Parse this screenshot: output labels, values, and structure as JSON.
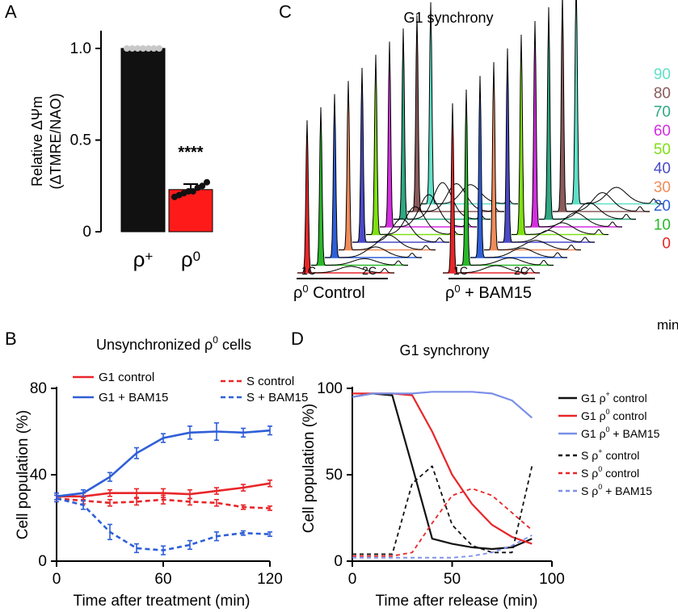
{
  "figure": {
    "panel_letters": [
      "A",
      "B",
      "C",
      "D"
    ]
  },
  "chart_data": [
    {
      "panel": "A",
      "type": "bar",
      "ylabel_line1": "Relative ΔΨm",
      "ylabel_line2": "(ΔTMRE/NAO)",
      "ylim": [
        0,
        1.1
      ],
      "yticks": [
        0,
        0.5,
        1.0
      ],
      "ytick_labels": [
        "0",
        "0.5",
        "1.0"
      ],
      "categories": [
        {
          "base": "ρ",
          "sup": "+"
        },
        {
          "base": "ρ",
          "sup": "0"
        }
      ],
      "values": [
        1.0,
        0.23
      ],
      "errors": [
        0.0,
        0.03
      ],
      "colors": [
        "#111111",
        "#ff1a1a"
      ],
      "points": [
        [
          1.0,
          1.0,
          1.0,
          1.0,
          1.0,
          1.0,
          1.0
        ],
        [
          0.19,
          0.2,
          0.21,
          0.22,
          0.22,
          0.24,
          0.25,
          0.27
        ]
      ],
      "annotation": "****"
    },
    {
      "panel": "B",
      "type": "line",
      "title": "Unsynchronized ρ",
      "title_sup": "0",
      "title_suffix": " cells",
      "xlabel": "Time after treatment (min)",
      "ylabel": "Cell population (%)",
      "xlim": [
        0,
        120
      ],
      "ylim": [
        0,
        80
      ],
      "xticks": [
        0,
        40,
        60,
        120
      ],
      "xtick_labels": [
        "0",
        "60",
        "120"
      ],
      "xtick_label_values": [
        0,
        60,
        120
      ],
      "yticks": [
        0,
        40,
        80
      ],
      "ytick_labels": [
        "0",
        "40",
        "80"
      ],
      "x": [
        0,
        15,
        30,
        45,
        60,
        75,
        90,
        105,
        120
      ],
      "series": [
        {
          "name": "G1 control",
          "color": "#e8262a",
          "dashed": false,
          "values": [
            30,
            30,
            31.5,
            31.5,
            31.5,
            31,
            32.5,
            34,
            36
          ],
          "errors": [
            1.5,
            1.5,
            1.5,
            2,
            2,
            2,
            1.5,
            1.5,
            1.5
          ]
        },
        {
          "name": "G1 + BAM15",
          "color": "#2f5fd8",
          "dashed": false,
          "values": [
            30,
            31.5,
            39,
            50,
            57,
            59.5,
            60,
            59.5,
            60.5
          ],
          "errors": [
            1.5,
            1.5,
            2,
            2.5,
            2,
            3,
            4,
            2,
            2
          ]
        },
        {
          "name": "S control",
          "color": "#e8262a",
          "dashed": true,
          "values": [
            29,
            28,
            27,
            27.5,
            28.5,
            27.5,
            27,
            25,
            24.5
          ],
          "errors": [
            1.5,
            1.5,
            1.5,
            1.5,
            2,
            1.5,
            1.5,
            1,
            1
          ]
        },
        {
          "name": "S + BAM15",
          "color": "#2f5fd8",
          "dashed": true,
          "values": [
            29,
            26,
            13.5,
            6,
            5,
            7.5,
            11.5,
            13,
            12.5
          ],
          "errors": [
            1.5,
            2,
            3.5,
            2,
            2,
            2,
            2,
            1,
            1
          ]
        }
      ]
    },
    {
      "panel": "C",
      "type": "histogram-stack",
      "title": "G1 synchrony",
      "timepoints_label_unit": "min",
      "timepoints": [
        {
          "label": "90",
          "color": "#5fe0c8"
        },
        {
          "label": "80",
          "color": "#8a5a5a"
        },
        {
          "label": "70",
          "color": "#2ea882"
        },
        {
          "label": "60",
          "color": "#d42ee0"
        },
        {
          "label": "50",
          "color": "#7fe012"
        },
        {
          "label": "40",
          "color": "#4a4ac8"
        },
        {
          "label": "30",
          "color": "#f08c5a"
        },
        {
          "label": "20",
          "color": "#2f5fd8"
        },
        {
          "label": "10",
          "color": "#2ab82a"
        },
        {
          "label": "0",
          "color": "#e8262a"
        }
      ],
      "groups": [
        {
          "name": "ρ",
          "sup": "0",
          "suffix": " Control",
          "axis_1c": "1C",
          "axis_2c": "2C"
        },
        {
          "name": "ρ",
          "sup": "0",
          "suffix": " + BAM15",
          "axis_1c": "1C",
          "axis_2c": "2C"
        }
      ]
    },
    {
      "panel": "D",
      "type": "line",
      "title": "G1 synchrony",
      "xlabel": "Time after release (min)",
      "ylabel": "Cell population (%)",
      "xlim": [
        0,
        100
      ],
      "ylim": [
        0,
        100
      ],
      "xticks": [
        0,
        50,
        100
      ],
      "xtick_labels": [
        "0",
        "50",
        "100"
      ],
      "yticks": [
        0,
        50,
        100
      ],
      "ytick_labels": [
        "0",
        "50",
        "100"
      ],
      "series": [
        {
          "name": "G1 ρ",
          "sup": "+",
          "suffix": " control",
          "color": "#111111",
          "dashed": false,
          "x": [
            0,
            10,
            20,
            30,
            40,
            50,
            60,
            70,
            80,
            90
          ],
          "values": [
            95,
            97,
            96,
            55,
            13,
            10,
            8,
            7,
            8,
            13
          ]
        },
        {
          "name": "G1 ρ",
          "sup": "0",
          "suffix": " control",
          "color": "#e8262a",
          "dashed": false,
          "x": [
            0,
            10,
            20,
            30,
            40,
            50,
            60,
            70,
            80,
            90
          ],
          "values": [
            97,
            97,
            97,
            96,
            75,
            50,
            33,
            21,
            14,
            10
          ]
        },
        {
          "name": "G1 ρ",
          "sup": "0",
          "suffix": " + BAM15",
          "color": "#7b8fe8",
          "dashed": false,
          "x": [
            0,
            10,
            20,
            30,
            40,
            50,
            60,
            70,
            80,
            90
          ],
          "values": [
            95,
            97,
            97,
            97,
            98,
            98,
            98,
            97,
            93,
            83
          ]
        },
        {
          "name": "S ρ",
          "sup": "+",
          "suffix": " control",
          "color": "#111111",
          "dashed": true,
          "x": [
            0,
            10,
            20,
            30,
            40,
            50,
            60,
            70,
            80,
            90
          ],
          "values": [
            4,
            4,
            4,
            45,
            55,
            21,
            9,
            5,
            5,
            55
          ]
        },
        {
          "name": "S ρ",
          "sup": "0",
          "suffix": " control",
          "color": "#e8262a",
          "dashed": true,
          "x": [
            0,
            10,
            20,
            30,
            40,
            50,
            60,
            70,
            80,
            90
          ],
          "values": [
            3,
            3,
            3,
            5,
            22,
            38,
            42,
            38,
            28,
            18
          ]
        },
        {
          "name": "S ρ",
          "sup": "0",
          "suffix": " + BAM15",
          "color": "#7b8fe8",
          "dashed": true,
          "x": [
            0,
            10,
            20,
            30,
            40,
            50,
            60,
            70,
            80,
            90
          ],
          "values": [
            2,
            2,
            2,
            2,
            2,
            2,
            3,
            5,
            9,
            15
          ]
        }
      ]
    }
  ]
}
